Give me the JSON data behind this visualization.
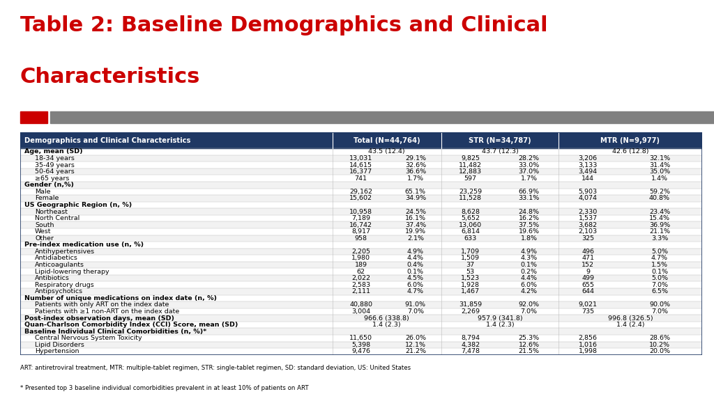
{
  "title_line1": "Table 2: Baseline Demographics and Clinical",
  "title_line2": "Characteristics",
  "title_color": "#CC0000",
  "title_fontsize": 22,
  "title_fontweight": "bold",
  "background_color": "#FFFFFF",
  "header_bg_color": "#1F3864",
  "header_text_color": "#FFFFFF",
  "header_fontsize": 7.2,
  "row_fontsize": 6.8,
  "footnote_fontsize": 6.2,
  "divider_color1": "#CC0000",
  "divider_color2": "#808080",
  "alt_row_color": "#F2F2F2",
  "white_row_color": "#FFFFFF",
  "rows": [
    {
      "label": "Age, mean (SD)",
      "bold": true,
      "indent": 0,
      "total": "43.5 (12.4)",
      "str": "43.7 (12.3)",
      "mtr": "42.6 (12.8)",
      "type": "summary"
    },
    {
      "label": "18-34 years",
      "bold": false,
      "indent": 1,
      "total_n": "13,031",
      "total_pct": "29.1%",
      "str_n": "9,825",
      "str_pct": "28.2%",
      "mtr_n": "3,206",
      "mtr_pct": "32.1%",
      "type": "data"
    },
    {
      "label": "35-49 years",
      "bold": false,
      "indent": 1,
      "total_n": "14,615",
      "total_pct": "32.6%",
      "str_n": "11,482",
      "str_pct": "33.0%",
      "mtr_n": "3,133",
      "mtr_pct": "31.4%",
      "type": "data"
    },
    {
      "label": "50-64 years",
      "bold": false,
      "indent": 1,
      "total_n": "16,377",
      "total_pct": "36.6%",
      "str_n": "12,883",
      "str_pct": "37.0%",
      "mtr_n": "3,494",
      "mtr_pct": "35.0%",
      "type": "data"
    },
    {
      "label": "≥65 years",
      "bold": false,
      "indent": 1,
      "total_n": "741",
      "total_pct": "1.7%",
      "str_n": "597",
      "str_pct": "1.7%",
      "mtr_n": "144",
      "mtr_pct": "1.4%",
      "type": "data"
    },
    {
      "label": "Gender (n,%)",
      "bold": true,
      "indent": 0,
      "type": "header_only"
    },
    {
      "label": "Male",
      "bold": false,
      "indent": 1,
      "total_n": "29,162",
      "total_pct": "65.1%",
      "str_n": "23,259",
      "str_pct": "66.9%",
      "mtr_n": "5,903",
      "mtr_pct": "59.2%",
      "type": "data"
    },
    {
      "label": "Female",
      "bold": false,
      "indent": 1,
      "total_n": "15,602",
      "total_pct": "34.9%",
      "str_n": "11,528",
      "str_pct": "33.1%",
      "mtr_n": "4,074",
      "mtr_pct": "40.8%",
      "type": "data"
    },
    {
      "label": "US Geographic Region (n, %)",
      "bold": true,
      "indent": 0,
      "type": "header_only"
    },
    {
      "label": "Northeast",
      "bold": false,
      "indent": 1,
      "total_n": "10,958",
      "total_pct": "24.5%",
      "str_n": "8,628",
      "str_pct": "24.8%",
      "mtr_n": "2,330",
      "mtr_pct": "23.4%",
      "type": "data"
    },
    {
      "label": "North Central",
      "bold": false,
      "indent": 1,
      "total_n": "7,189",
      "total_pct": "16.1%",
      "str_n": "5,652",
      "str_pct": "16.2%",
      "mtr_n": "1,537",
      "mtr_pct": "15.4%",
      "type": "data"
    },
    {
      "label": "South",
      "bold": false,
      "indent": 1,
      "total_n": "16,742",
      "total_pct": "37.4%",
      "str_n": "13,060",
      "str_pct": "37.5%",
      "mtr_n": "3,682",
      "mtr_pct": "36.9%",
      "type": "data"
    },
    {
      "label": "West",
      "bold": false,
      "indent": 1,
      "total_n": "8,917",
      "total_pct": "19.9%",
      "str_n": "6,814",
      "str_pct": "19.6%",
      "mtr_n": "2,103",
      "mtr_pct": "21.1%",
      "type": "data"
    },
    {
      "label": "Other",
      "bold": false,
      "indent": 1,
      "total_n": "958",
      "total_pct": "2.1%",
      "str_n": "633",
      "str_pct": "1.8%",
      "mtr_n": "325",
      "mtr_pct": "3.3%",
      "type": "data"
    },
    {
      "label": "Pre-index medication use (n, %)",
      "bold": true,
      "indent": 0,
      "type": "header_only"
    },
    {
      "label": "Antihypertensives",
      "bold": false,
      "indent": 1,
      "total_n": "2,205",
      "total_pct": "4.9%",
      "str_n": "1,709",
      "str_pct": "4.9%",
      "mtr_n": "496",
      "mtr_pct": "5.0%",
      "type": "data"
    },
    {
      "label": "Antidiabetics",
      "bold": false,
      "indent": 1,
      "total_n": "1,980",
      "total_pct": "4.4%",
      "str_n": "1,509",
      "str_pct": "4.3%",
      "mtr_n": "471",
      "mtr_pct": "4.7%",
      "type": "data"
    },
    {
      "label": "Anticoagulants",
      "bold": false,
      "indent": 1,
      "total_n": "189",
      "total_pct": "0.4%",
      "str_n": "37",
      "str_pct": "0.1%",
      "mtr_n": "152",
      "mtr_pct": "1.5%",
      "type": "data"
    },
    {
      "label": "Lipid-lowering therapy",
      "bold": false,
      "indent": 1,
      "total_n": "62",
      "total_pct": "0.1%",
      "str_n": "53",
      "str_pct": "0.2%",
      "mtr_n": "9",
      "mtr_pct": "0.1%",
      "type": "data"
    },
    {
      "label": "Antibiotics",
      "bold": false,
      "indent": 1,
      "total_n": "2,022",
      "total_pct": "4.5%",
      "str_n": "1,523",
      "str_pct": "4.4%",
      "mtr_n": "499",
      "mtr_pct": "5.0%",
      "type": "data"
    },
    {
      "label": "Respiratory drugs",
      "bold": false,
      "indent": 1,
      "total_n": "2,583",
      "total_pct": "6.0%",
      "str_n": "1,928",
      "str_pct": "6.0%",
      "mtr_n": "655",
      "mtr_pct": "7.0%",
      "type": "data"
    },
    {
      "label": "Antipsychotics",
      "bold": false,
      "indent": 1,
      "total_n": "2,111",
      "total_pct": "4.7%",
      "str_n": "1,467",
      "str_pct": "4.2%",
      "mtr_n": "644",
      "mtr_pct": "6.5%",
      "type": "data"
    },
    {
      "label": "Number of unique medications on index date (n, %)",
      "bold": true,
      "indent": 0,
      "type": "header_only"
    },
    {
      "label": "Patients with only ART on the index date",
      "bold": false,
      "indent": 1,
      "total_n": "40,880",
      "total_pct": "91.0%",
      "str_n": "31,859",
      "str_pct": "92.0%",
      "mtr_n": "9,021",
      "mtr_pct": "90.0%",
      "type": "data"
    },
    {
      "label": "Patients with ≥1 non-ART on the index date",
      "bold": false,
      "indent": 1,
      "total_n": "3,004",
      "total_pct": "7.0%",
      "str_n": "2,269",
      "str_pct": "7.0%",
      "mtr_n": "735",
      "mtr_pct": "7.0%",
      "type": "data"
    },
    {
      "label": "Post-index observation days, mean (SD)",
      "bold": true,
      "indent": 0,
      "total": "966.6 (338.8)",
      "str": "957.9 (341.8)",
      "mtr": "996.8 (326.5)",
      "type": "summary"
    },
    {
      "label": "Quan-Charlson Comorbidity Index (CCI) Score, mean (SD)",
      "bold": true,
      "indent": 0,
      "total": "1.4 (2.3)",
      "str": "1.4 (2.3)",
      "mtr": "1.4 (2.4)",
      "type": "summary"
    },
    {
      "label": "Baseline Individual Clinical Comorbidities (n, %)*",
      "bold": true,
      "indent": 0,
      "type": "header_only"
    },
    {
      "label": "Central Nervous System Toxicity",
      "bold": false,
      "indent": 1,
      "total_n": "11,650",
      "total_pct": "26.0%",
      "str_n": "8,794",
      "str_pct": "25.3%",
      "mtr_n": "2,856",
      "mtr_pct": "28.6%",
      "type": "data"
    },
    {
      "label": "Lipid Disorders",
      "bold": false,
      "indent": 1,
      "total_n": "5,398",
      "total_pct": "12.1%",
      "str_n": "4,382",
      "str_pct": "12.6%",
      "mtr_n": "1,016",
      "mtr_pct": "10.2%",
      "type": "data"
    },
    {
      "label": "Hypertension",
      "bold": false,
      "indent": 1,
      "total_n": "9,476",
      "total_pct": "21.2%",
      "str_n": "7,478",
      "str_pct": "21.5%",
      "mtr_n": "1,998",
      "mtr_pct": "20.0%",
      "type": "data"
    }
  ],
  "footnote1": "ART: antiretroviral treatment, MTR: multiple-tablet regimen, STR: single-tablet regimen, SD: standard deviation, US: United States",
  "footnote2": "* Presented top 3 baseline individual comorbidities prevalent in at least 10% of patients on ART"
}
